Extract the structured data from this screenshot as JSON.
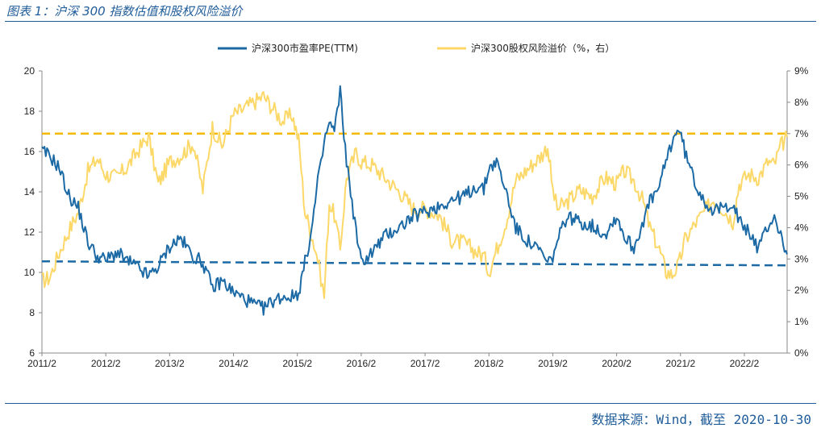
{
  "title": "图表 1：沪深 300 指数估值和股权风险溢价",
  "source": "数据来源：Wind，截至 2020-10-30",
  "chart_data": {
    "type": "line",
    "title": "图表 1：沪深 300 指数估值和股权风险溢价",
    "x_labels": [
      "2011/2",
      "2012/2",
      "2013/2",
      "2014/2",
      "2015/2",
      "2016/2",
      "2017/2",
      "2018/2",
      "2019/2",
      "2020/2",
      "2021/2",
      "2022/2"
    ],
    "x_range": [
      2011.08,
      2022.75
    ],
    "left_axis": {
      "range": [
        6,
        20
      ],
      "ticks": [
        "6",
        "8",
        "10",
        "12",
        "14",
        "16",
        "18",
        "20"
      ]
    },
    "right_axis": {
      "range": [
        0,
        9
      ],
      "ticks": [
        "0%",
        "1%",
        "2%",
        "3%",
        "4%",
        "5%",
        "6%",
        "7%",
        "8%",
        "9%"
      ]
    },
    "legend": [
      "沪深300市盈率PE(TTM)",
      "沪深300股权风险溢价（%，右）"
    ],
    "colors": {
      "pe": "#1c6aa5",
      "erp": "#fcd868",
      "pe_ref": "#1c6aa5",
      "erp_ref": "#f5b800"
    },
    "series": [
      {
        "name": "沪深300市盈率PE(TTM)",
        "axis": "left",
        "x": [
          2011.08,
          2011.2,
          2011.35,
          2011.5,
          2011.65,
          2011.8,
          2011.95,
          2012.08,
          2012.25,
          2012.4,
          2012.6,
          2012.75,
          2012.9,
          2013.08,
          2013.25,
          2013.45,
          2013.6,
          2013.75,
          2013.9,
          2014.08,
          2014.25,
          2014.4,
          2014.55,
          2014.7,
          2014.85,
          2015.0,
          2015.1,
          2015.2,
          2015.3,
          2015.4,
          2015.45,
          2015.5,
          2015.58,
          2015.66,
          2015.75,
          2015.85,
          2016.0,
          2016.08,
          2016.25,
          2016.45,
          2016.7,
          2016.9,
          2017.08,
          2017.3,
          2017.5,
          2017.7,
          2017.9,
          2018.0,
          2018.08,
          2018.2,
          2018.35,
          2018.5,
          2018.7,
          2018.9,
          2019.0,
          2019.08,
          2019.15,
          2019.3,
          2019.5,
          2019.7,
          2019.9,
          2020.08,
          2020.2,
          2020.35,
          2020.5,
          2020.6,
          2020.75,
          2020.85,
          2020.95,
          2021.05,
          2021.15,
          2021.3,
          2021.45,
          2021.6,
          2021.75,
          2021.9,
          2022.0,
          2022.15,
          2022.3,
          2022.45,
          2022.55,
          2022.65,
          2022.75
        ],
        "values": [
          16.0,
          15.8,
          15.2,
          13.8,
          13.2,
          11.5,
          10.8,
          10.6,
          11.0,
          10.6,
          10.2,
          9.8,
          10.3,
          11.3,
          11.7,
          10.8,
          10.5,
          9.2,
          9.6,
          9.0,
          8.7,
          8.4,
          8.2,
          8.6,
          8.8,
          8.8,
          9.0,
          10.5,
          12.0,
          14.5,
          15.3,
          16.5,
          17.4,
          17.0,
          19.0,
          15.5,
          12.0,
          10.5,
          11.0,
          11.8,
          12.3,
          12.8,
          13.0,
          13.3,
          13.6,
          13.8,
          14.3,
          14.1,
          15.2,
          15.5,
          14.0,
          12.2,
          11.5,
          11.0,
          10.4,
          10.8,
          11.5,
          12.8,
          12.5,
          12.3,
          11.9,
          12.8,
          11.8,
          11.2,
          12.6,
          13.5,
          14.2,
          15.5,
          16.5,
          17.2,
          16.0,
          14.5,
          13.6,
          13.0,
          13.2,
          13.5,
          12.5,
          12.0,
          11.2,
          12.3,
          12.8,
          11.8,
          10.9
        ]
      },
      {
        "name": "沪深300股权风险溢价（%，右）",
        "axis": "right",
        "x": [
          2011.08,
          2011.2,
          2011.35,
          2011.5,
          2011.65,
          2011.8,
          2011.95,
          2012.08,
          2012.25,
          2012.4,
          2012.6,
          2012.75,
          2012.9,
          2013.08,
          2013.25,
          2013.45,
          2013.6,
          2013.75,
          2013.9,
          2014.08,
          2014.25,
          2014.4,
          2014.55,
          2014.7,
          2014.85,
          2015.0,
          2015.1,
          2015.2,
          2015.3,
          2015.4,
          2015.45,
          2015.5,
          2015.58,
          2015.66,
          2015.75,
          2015.85,
          2016.0,
          2016.08,
          2016.25,
          2016.45,
          2016.7,
          2016.9,
          2017.08,
          2017.3,
          2017.5,
          2017.7,
          2017.9,
          2018.0,
          2018.08,
          2018.2,
          2018.35,
          2018.5,
          2018.7,
          2018.9,
          2019.0,
          2019.08,
          2019.15,
          2019.3,
          2019.5,
          2019.7,
          2019.9,
          2020.08,
          2020.2,
          2020.35,
          2020.5,
          2020.6,
          2020.75,
          2020.85,
          2020.95,
          2021.05,
          2021.15,
          2021.3,
          2021.45,
          2021.6,
          2021.75,
          2021.9,
          2022.0,
          2022.15,
          2022.3,
          2022.45,
          2022.55,
          2022.65,
          2022.75
        ],
        "values": [
          2.3,
          2.4,
          3.2,
          3.9,
          4.5,
          5.8,
          6.2,
          5.7,
          5.6,
          5.9,
          6.5,
          6.9,
          5.4,
          6.1,
          6.3,
          6.7,
          5.2,
          7.2,
          6.6,
          7.6,
          7.8,
          8.0,
          8.2,
          7.8,
          7.4,
          7.6,
          6.8,
          4.5,
          3.8,
          3.0,
          2.4,
          1.8,
          4.8,
          4.4,
          3.3,
          5.6,
          6.4,
          6.1,
          6.0,
          5.6,
          5.1,
          4.6,
          4.6,
          4.4,
          3.6,
          3.5,
          3.2,
          3.1,
          2.6,
          3.3,
          4.2,
          5.5,
          5.9,
          6.3,
          6.6,
          5.2,
          4.6,
          4.8,
          5.2,
          5.0,
          5.6,
          5.4,
          5.8,
          5.5,
          4.8,
          4.0,
          3.3,
          2.6,
          2.5,
          2.8,
          3.6,
          4.1,
          4.5,
          4.9,
          4.6,
          4.2,
          5.4,
          5.7,
          5.6,
          6.1,
          6.0,
          6.6,
          6.9
        ]
      }
    ],
    "reference_lines": [
      {
        "axis": "left",
        "label": "PE reference",
        "x": [
          2011.08,
          2022.75
        ],
        "values": [
          10.55,
          10.35
        ]
      },
      {
        "axis": "right",
        "label": "ERP reference",
        "value": 7.0
      }
    ]
  }
}
